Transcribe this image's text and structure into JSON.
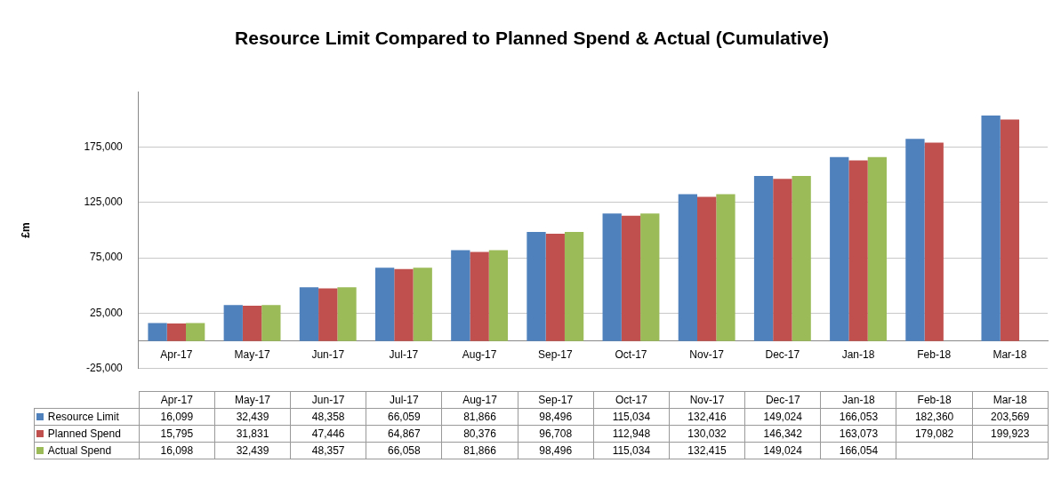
{
  "chart_data": {
    "type": "bar",
    "title": "Resource Limit Compared to Planned Spend & Actual (Cumulative)",
    "ylabel": "£m",
    "categories": [
      "Apr-17",
      "May-17",
      "Jun-17",
      "Jul-17",
      "Aug-17",
      "Sep-17",
      "Oct-17",
      "Nov-17",
      "Dec-17",
      "Jan-18",
      "Feb-18",
      "Mar-18"
    ],
    "series": [
      {
        "name": "Resource Limit",
        "color": "#4f81bd",
        "values": [
          16099,
          32439,
          48358,
          66059,
          81866,
          98496,
          115034,
          132416,
          149024,
          166053,
          182360,
          203569
        ],
        "value_labels": [
          "16,099",
          "32,439",
          "48,358",
          "66,059",
          "81,866",
          "98,496",
          "115,034",
          "132,416",
          "149,024",
          "166,053",
          "182,360",
          "203,569"
        ]
      },
      {
        "name": "Planned Spend",
        "color": "#c0504d",
        "values": [
          15795,
          31831,
          47446,
          64867,
          80376,
          96708,
          112948,
          130032,
          146342,
          163073,
          179082,
          199923
        ],
        "value_labels": [
          "15,795",
          "31,831",
          "47,446",
          "64,867",
          "80,376",
          "96,708",
          "112,948",
          "130,032",
          "146,342",
          "163,073",
          "179,082",
          "199,923"
        ]
      },
      {
        "name": "Actual Spend",
        "color": "#9bbb59",
        "values": [
          16098,
          32439,
          48357,
          66058,
          81866,
          98496,
          115034,
          132415,
          149024,
          166054,
          null,
          null
        ],
        "value_labels": [
          "16,098",
          "32,439",
          "48,357",
          "66,058",
          "81,866",
          "98,496",
          "115,034",
          "132,415",
          "149,024",
          "166,054",
          null,
          null
        ]
      }
    ],
    "ylim": [
      -25000,
      225000
    ],
    "yticks": [
      {
        "value": -25000,
        "label": "-25,000"
      },
      {
        "value": 25000,
        "label": "25,000"
      },
      {
        "value": 75000,
        "label": "75,000"
      },
      {
        "value": 125000,
        "label": "125,000"
      },
      {
        "value": 175000,
        "label": "175,000"
      }
    ],
    "grid": "y",
    "legend": "bottom left"
  }
}
